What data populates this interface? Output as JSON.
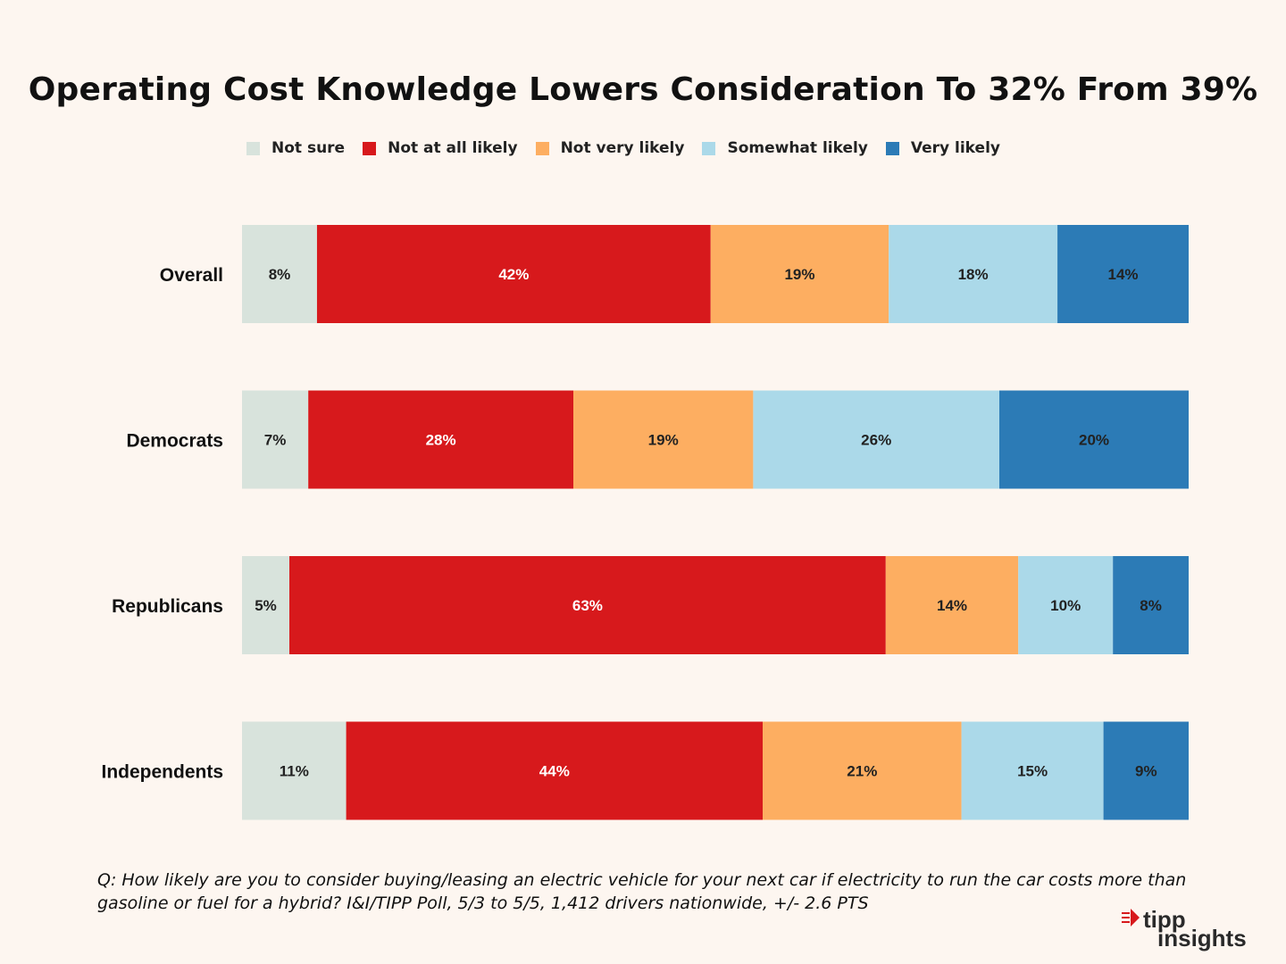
{
  "chart_data": {
    "type": "bar",
    "orientation": "horizontal",
    "stacked": true,
    "title": "Operating Cost Knowledge Lowers Consideration To 32% From 39%",
    "categories": [
      "Overall",
      "Democrats",
      "Republicans",
      "Independents"
    ],
    "series": [
      {
        "name": "Not sure",
        "color": "#d8e3dc",
        "label_color": "#222222",
        "values": [
          8,
          7,
          5,
          11
        ]
      },
      {
        "name": "Not at all likely",
        "color": "#d7191c",
        "label_color": "#ffffff",
        "values": [
          42,
          28,
          63,
          44
        ]
      },
      {
        "name": "Not very likely",
        "color": "#fdae61",
        "label_color": "#222222",
        "values": [
          19,
          19,
          14,
          21
        ]
      },
      {
        "name": "Somewhat likely",
        "color": "#abd9e9",
        "label_color": "#222222",
        "values": [
          18,
          26,
          10,
          15
        ]
      },
      {
        "name": "Very likely",
        "color": "#2c7bb6",
        "label_color": "#222222",
        "values": [
          14,
          20,
          8,
          9
        ]
      }
    ],
    "value_suffix": "%",
    "legend_position": "top",
    "xlabel": "",
    "ylabel": ""
  },
  "footnote": "Q: How likely are you to consider buying/leasing an electric vehicle for your next car if electricity to run the car costs more than gasoline or fuel for a hybrid? I&I/TIPP Poll,  5/3 to 5/5, 1,412 drivers nationwide, +/- 2.6 PTS",
  "logo": {
    "line1": "tipp",
    "line2": "insights"
  }
}
